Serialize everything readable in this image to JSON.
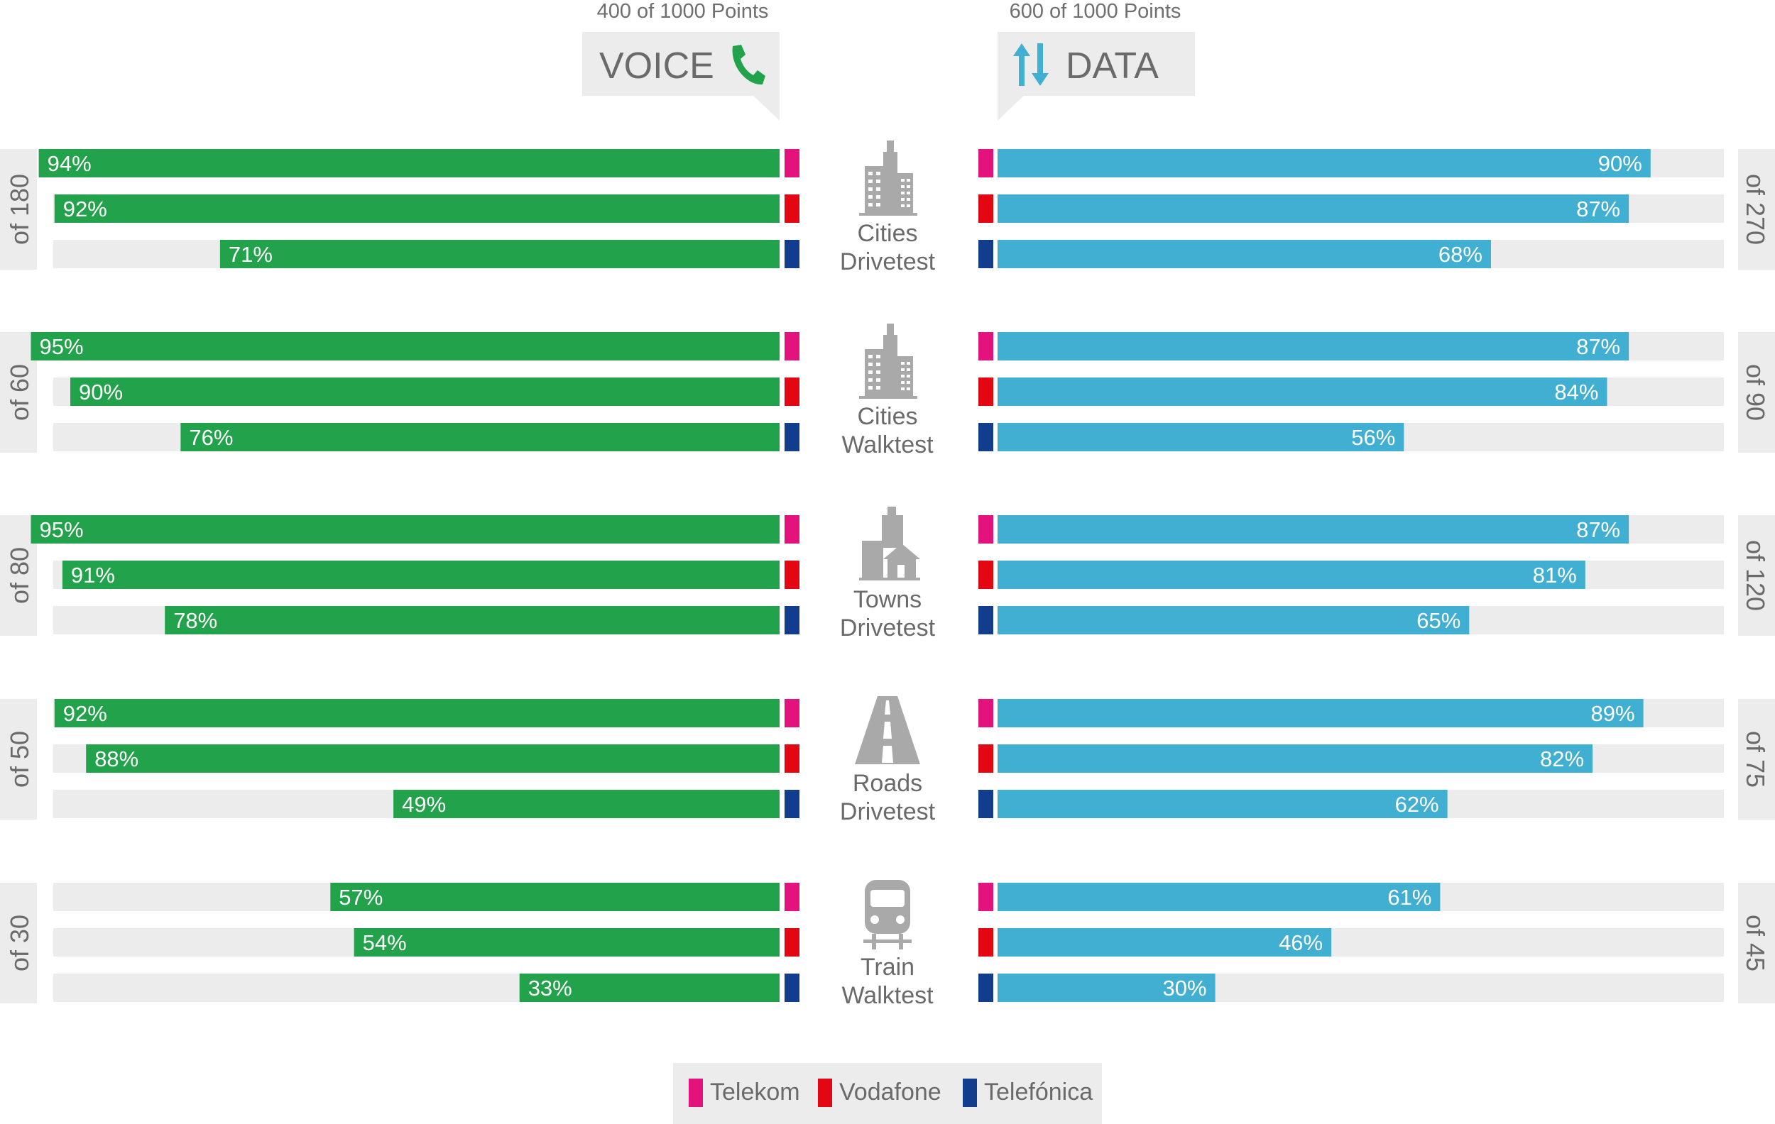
{
  "voice": {
    "points_label": "400 of 1000 Points",
    "title": "VOICE",
    "icon": "phone-icon",
    "bar_color": "#22a24a"
  },
  "data": {
    "points_label": "600 of 1000 Points",
    "title": "DATA",
    "icon": "up-down-arrows-icon",
    "bar_color": "#41afd1"
  },
  "operators": [
    {
      "name": "Telekom",
      "color": "#e2137d"
    },
    {
      "name": "Vodafone",
      "color": "#e30613"
    },
    {
      "name": "Telefónica",
      "color": "#123d8c"
    }
  ],
  "chart_data": {
    "type": "bar",
    "orientation": "horizontal",
    "categories": [
      "Cities Drivetest",
      "Cities Walktest",
      "Towns Drivetest",
      "Roads Drivetest",
      "Train Walktest"
    ],
    "category_labels": [
      [
        "Cities",
        "Drivetest"
      ],
      [
        "Cities",
        "Walktest"
      ],
      [
        "Towns",
        "Drivetest"
      ],
      [
        "Roads",
        "Drivetest"
      ],
      [
        "Train",
        "Walktest"
      ]
    ],
    "category_icons": [
      "city-buildings-icon",
      "city-buildings-icon",
      "town-houses-icon",
      "road-icon",
      "train-icon"
    ],
    "voice_max_labels": [
      "of 180",
      "of 60",
      "of 80",
      "of 50",
      "of 30"
    ],
    "data_max_labels": [
      "of 270",
      "of 90",
      "of 120",
      "of 75",
      "of 45"
    ],
    "xlim": [
      0,
      100
    ],
    "unit": "%",
    "voice": [
      {
        "name": "Telekom",
        "values": [
          94,
          95,
          95,
          92,
          57
        ]
      },
      {
        "name": "Vodafone",
        "values": [
          92,
          90,
          91,
          88,
          54
        ]
      },
      {
        "name": "Telefónica",
        "values": [
          71,
          76,
          78,
          49,
          33
        ]
      }
    ],
    "data": [
      {
        "name": "Telekom",
        "values": [
          90,
          87,
          87,
          89,
          61
        ]
      },
      {
        "name": "Vodafone",
        "values": [
          87,
          84,
          81,
          82,
          46
        ]
      },
      {
        "name": "Telefónica",
        "values": [
          68,
          56,
          65,
          62,
          30
        ]
      }
    ],
    "legend": "bottom-center"
  }
}
